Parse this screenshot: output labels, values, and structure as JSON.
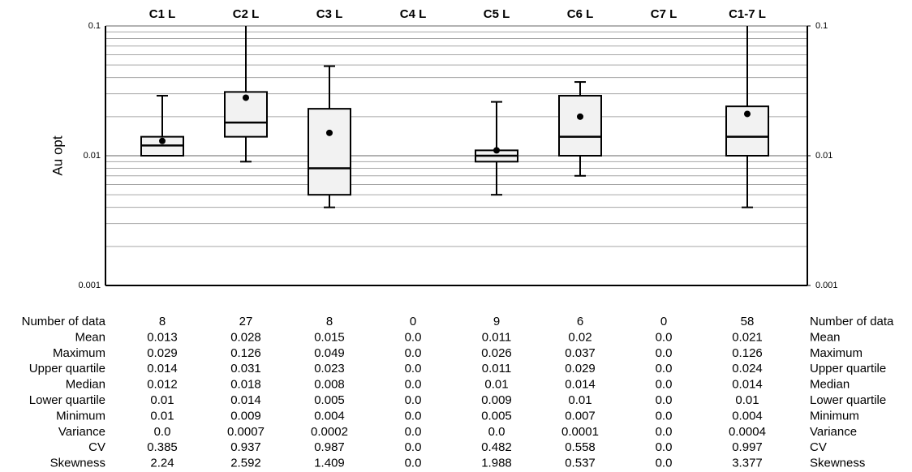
{
  "chart_data": {
    "type": "box",
    "ylabel": "Au opt",
    "categories": [
      "C1 L",
      "C2 L",
      "C3 L",
      "C4 L",
      "C5 L",
      "C6 L",
      "C7 L",
      "C1-7 L"
    ],
    "ylog": true,
    "ylim": [
      0.001,
      0.1
    ],
    "yticks": [
      0.001,
      0.01,
      0.1
    ],
    "y2lim": [
      0.001,
      0.1
    ],
    "y2ticks": [
      0.001,
      0.01,
      0.1
    ],
    "minor_gridlines": [
      0.002,
      0.003,
      0.004,
      0.005,
      0.006,
      0.007,
      0.008,
      0.009,
      0.02,
      0.03,
      0.04,
      0.05,
      0.06,
      0.07,
      0.08,
      0.09
    ],
    "grid": true,
    "box_color": "#f2f2f2",
    "stats": [
      {
        "name": "Number of data",
        "values": [
          8,
          27,
          8,
          0,
          9,
          6,
          0,
          58
        ]
      },
      {
        "name": "Mean",
        "values": [
          0.013,
          0.028,
          0.015,
          {
            "value": 0,
            "label": "0.0"
          },
          0.011,
          0.02,
          {
            "value": 0,
            "label": "0.0"
          },
          0.021
        ]
      },
      {
        "name": "Maximum",
        "values": [
          0.029,
          0.126,
          0.049,
          {
            "value": 0,
            "label": "0.0"
          },
          0.026,
          0.037,
          {
            "value": 0,
            "label": "0.0"
          },
          0.126
        ]
      },
      {
        "name": "Upper quartile",
        "values": [
          0.014,
          0.031,
          0.023,
          {
            "value": 0,
            "label": "0.0"
          },
          0.011,
          0.029,
          {
            "value": 0,
            "label": "0.0"
          },
          0.024
        ]
      },
      {
        "name": "Median",
        "values": [
          0.012,
          0.018,
          0.008,
          {
            "value": 0,
            "label": "0.0"
          },
          0.01,
          0.014,
          {
            "value": 0,
            "label": "0.0"
          },
          0.014
        ]
      },
      {
        "name": "Lower quartile",
        "values": [
          0.01,
          0.014,
          0.005,
          {
            "value": 0,
            "label": "0.0"
          },
          0.009,
          0.01,
          {
            "value": 0,
            "label": "0.0"
          },
          0.01
        ]
      },
      {
        "name": "Minimum",
        "values": [
          0.01,
          0.009,
          0.004,
          {
            "value": 0,
            "label": "0.0"
          },
          0.005,
          0.007,
          {
            "value": 0,
            "label": "0.0"
          },
          0.004
        ]
      },
      {
        "name": "Variance",
        "values": [
          {
            "value": 0,
            "label": "0.0"
          },
          0.0007,
          0.0002,
          {
            "value": 0,
            "label": "0.0"
          },
          {
            "value": 0,
            "label": "0.0"
          },
          0.0001,
          {
            "value": 0,
            "label": "0.0"
          },
          0.0004
        ]
      },
      {
        "name": "CV",
        "values": [
          0.385,
          0.937,
          0.987,
          {
            "value": 0,
            "label": "0.0"
          },
          0.482,
          0.558,
          {
            "value": 0,
            "label": "0.0"
          },
          0.997
        ]
      },
      {
        "name": "Skewness",
        "values": [
          2.24,
          2.592,
          1.409,
          {
            "value": 0,
            "label": "0.0"
          },
          1.988,
          0.537,
          {
            "value": 0,
            "label": "0.0"
          },
          3.377
        ]
      }
    ]
  }
}
